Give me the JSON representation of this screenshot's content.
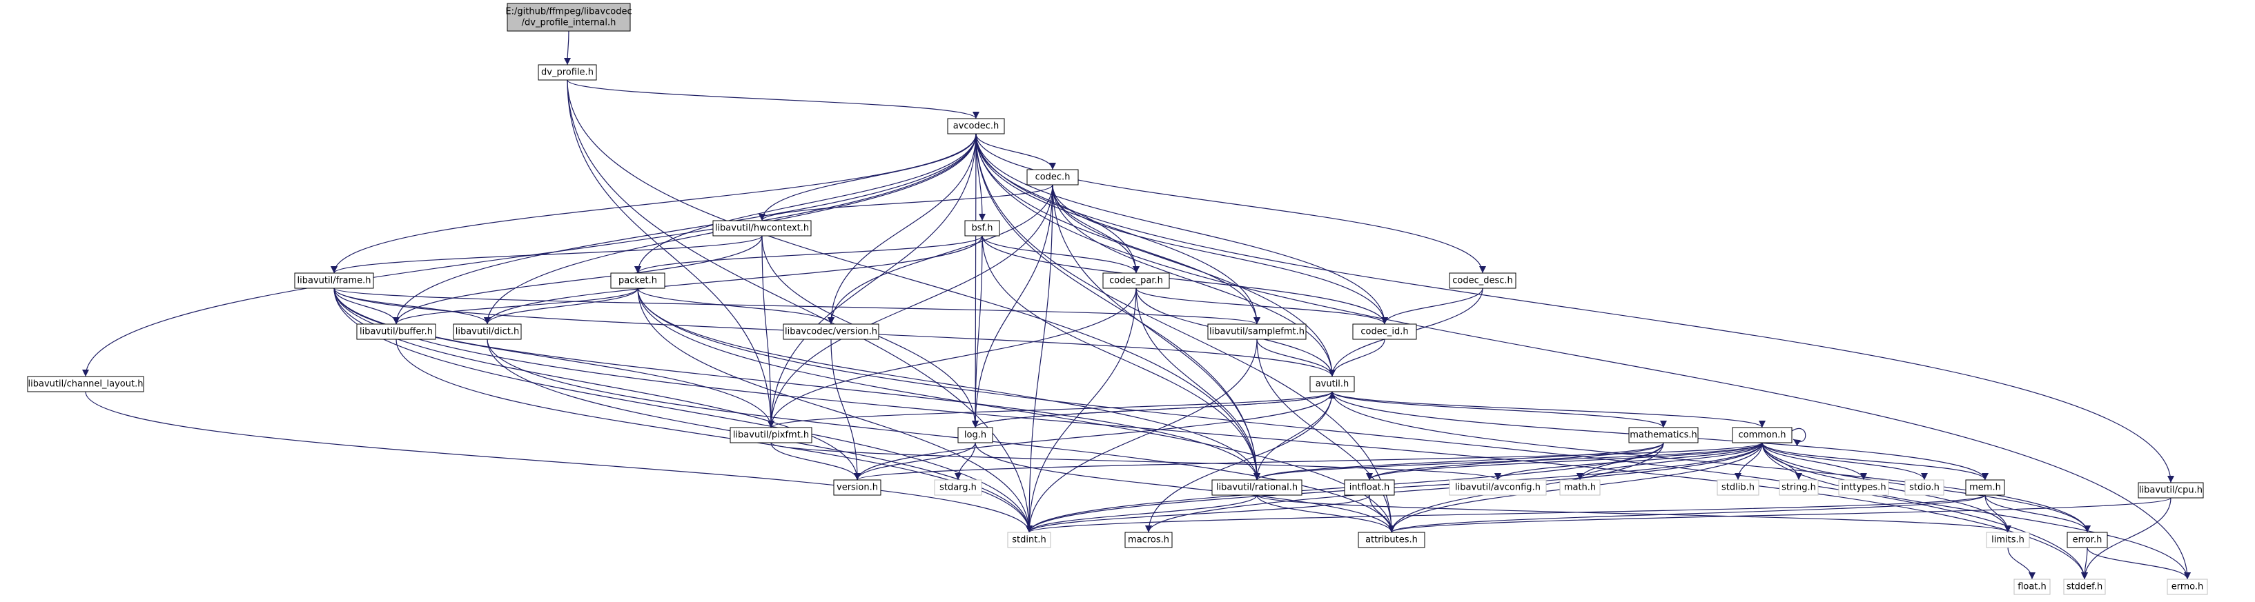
{
  "diagram": {
    "nodes": [
      {
        "id": "root",
        "label": "E:/github/ffmpeg/libavcodec\n/dv_profile_internal.h",
        "style": "root"
      },
      {
        "id": "dv_profile",
        "label": "dv_profile.h",
        "style": "documented"
      },
      {
        "id": "avcodec",
        "label": "avcodec.h",
        "style": "documented"
      },
      {
        "id": "codec",
        "label": "codec.h",
        "style": "documented"
      },
      {
        "id": "hwcontext",
        "label": "libavutil/hwcontext.h",
        "style": "documented"
      },
      {
        "id": "bsf",
        "label": "bsf.h",
        "style": "documented"
      },
      {
        "id": "frame",
        "label": "libavutil/frame.h",
        "style": "documented"
      },
      {
        "id": "packet",
        "label": "packet.h",
        "style": "documented"
      },
      {
        "id": "codec_par",
        "label": "codec_par.h",
        "style": "documented"
      },
      {
        "id": "codec_desc",
        "label": "codec_desc.h",
        "style": "documented"
      },
      {
        "id": "buffer",
        "label": "libavutil/buffer.h",
        "style": "documented"
      },
      {
        "id": "dict",
        "label": "libavutil/dict.h",
        "style": "documented"
      },
      {
        "id": "avc_version",
        "label": "libavcodec/version.h",
        "style": "documented"
      },
      {
        "id": "samplefmt",
        "label": "libavutil/samplefmt.h",
        "style": "documented"
      },
      {
        "id": "codec_id",
        "label": "codec_id.h",
        "style": "documented"
      },
      {
        "id": "channel_layout",
        "label": "libavutil/channel_layout.h",
        "style": "documented"
      },
      {
        "id": "avutil",
        "label": "avutil.h",
        "style": "documented"
      },
      {
        "id": "pixfmt",
        "label": "libavutil/pixfmt.h",
        "style": "documented"
      },
      {
        "id": "log",
        "label": "log.h",
        "style": "documented"
      },
      {
        "id": "mathematics",
        "label": "mathematics.h",
        "style": "documented"
      },
      {
        "id": "common",
        "label": "common.h",
        "style": "documented"
      },
      {
        "id": "cpu",
        "label": "libavutil/cpu.h",
        "style": "documented"
      },
      {
        "id": "version",
        "label": "version.h",
        "style": "documented"
      },
      {
        "id": "stdarg",
        "label": "stdarg.h",
        "style": "external"
      },
      {
        "id": "rational",
        "label": "libavutil/rational.h",
        "style": "documented"
      },
      {
        "id": "intfloat",
        "label": "intfloat.h",
        "style": "documented"
      },
      {
        "id": "avconfig",
        "label": "libavutil/avconfig.h",
        "style": "external"
      },
      {
        "id": "math",
        "label": "math.h",
        "style": "external"
      },
      {
        "id": "stdlib",
        "label": "stdlib.h",
        "style": "external"
      },
      {
        "id": "string",
        "label": "string.h",
        "style": "external"
      },
      {
        "id": "inttypes",
        "label": "inttypes.h",
        "style": "external"
      },
      {
        "id": "stdio",
        "label": "stdio.h",
        "style": "external"
      },
      {
        "id": "mem",
        "label": "mem.h",
        "style": "documented"
      },
      {
        "id": "stdint",
        "label": "stdint.h",
        "style": "external"
      },
      {
        "id": "macros",
        "label": "macros.h",
        "style": "documented"
      },
      {
        "id": "attributes",
        "label": "attributes.h",
        "style": "documented"
      },
      {
        "id": "limits",
        "label": "limits.h",
        "style": "external"
      },
      {
        "id": "error",
        "label": "error.h",
        "style": "documented"
      },
      {
        "id": "float",
        "label": "float.h",
        "style": "external"
      },
      {
        "id": "stddef",
        "label": "stddef.h",
        "style": "external"
      },
      {
        "id": "errno",
        "label": "errno.h",
        "style": "external"
      }
    ],
    "edges": [
      [
        "root",
        "dv_profile"
      ],
      [
        "dv_profile",
        "avcodec"
      ],
      [
        "dv_profile",
        "pixfmt"
      ],
      [
        "dv_profile",
        "rational"
      ],
      [
        "dv_profile",
        "stdint"
      ],
      [
        "avcodec",
        "codec"
      ],
      [
        "avcodec",
        "hwcontext"
      ],
      [
        "avcodec",
        "bsf"
      ],
      [
        "avcodec",
        "frame"
      ],
      [
        "avcodec",
        "packet"
      ],
      [
        "avcodec",
        "codec_par"
      ],
      [
        "avcodec",
        "codec_desc"
      ],
      [
        "avcodec",
        "buffer"
      ],
      [
        "avcodec",
        "dict"
      ],
      [
        "avcodec",
        "avc_version"
      ],
      [
        "avcodec",
        "samplefmt"
      ],
      [
        "avcodec",
        "codec_id"
      ],
      [
        "avcodec",
        "channel_layout"
      ],
      [
        "avcodec",
        "avutil"
      ],
      [
        "avcodec",
        "pixfmt"
      ],
      [
        "avcodec",
        "log"
      ],
      [
        "avcodec",
        "rational"
      ],
      [
        "avcodec",
        "cpu"
      ],
      [
        "avcodec",
        "attributes"
      ],
      [
        "avcodec",
        "errno"
      ],
      [
        "codec",
        "hwcontext"
      ],
      [
        "codec",
        "codec_par"
      ],
      [
        "codec",
        "avc_version"
      ],
      [
        "codec",
        "samplefmt"
      ],
      [
        "codec",
        "codec_id"
      ],
      [
        "codec",
        "avutil"
      ],
      [
        "codec",
        "pixfmt"
      ],
      [
        "codec",
        "log"
      ],
      [
        "codec",
        "rational"
      ],
      [
        "codec",
        "stdint"
      ],
      [
        "hwcontext",
        "frame"
      ],
      [
        "hwcontext",
        "buffer"
      ],
      [
        "hwcontext",
        "pixfmt"
      ],
      [
        "hwcontext",
        "log"
      ],
      [
        "bsf",
        "packet"
      ],
      [
        "bsf",
        "codec_par"
      ],
      [
        "bsf",
        "codec_id"
      ],
      [
        "bsf",
        "dict"
      ],
      [
        "bsf",
        "log"
      ],
      [
        "bsf",
        "rational"
      ],
      [
        "frame",
        "buffer"
      ],
      [
        "frame",
        "dict"
      ],
      [
        "frame",
        "avutil"
      ],
      [
        "frame",
        "pixfmt"
      ],
      [
        "frame",
        "samplefmt"
      ],
      [
        "frame",
        "rational"
      ],
      [
        "frame",
        "version"
      ],
      [
        "frame",
        "stdint"
      ],
      [
        "frame",
        "stddef"
      ],
      [
        "packet",
        "buffer"
      ],
      [
        "packet",
        "dict"
      ],
      [
        "packet",
        "avc_version"
      ],
      [
        "packet",
        "rational"
      ],
      [
        "packet",
        "attributes"
      ],
      [
        "packet",
        "stdint"
      ],
      [
        "packet",
        "stddef"
      ],
      [
        "codec_par",
        "codec_id"
      ],
      [
        "codec_par",
        "avutil"
      ],
      [
        "codec_par",
        "pixfmt"
      ],
      [
        "codec_par",
        "rational"
      ],
      [
        "codec_par",
        "stdint"
      ],
      [
        "codec_desc",
        "codec_id"
      ],
      [
        "codec_desc",
        "avutil"
      ],
      [
        "buffer",
        "stdint"
      ],
      [
        "dict",
        "stdint"
      ],
      [
        "dict",
        "attributes"
      ],
      [
        "avc_version",
        "version"
      ],
      [
        "samplefmt",
        "avutil"
      ],
      [
        "samplefmt",
        "attributes"
      ],
      [
        "samplefmt",
        "stdint"
      ],
      [
        "codec_id",
        "avutil"
      ],
      [
        "channel_layout",
        "stdint"
      ],
      [
        "avutil",
        "log"
      ],
      [
        "avutil",
        "pixfmt"
      ],
      [
        "avutil",
        "mathematics"
      ],
      [
        "avutil",
        "common"
      ],
      [
        "avutil",
        "rational"
      ],
      [
        "avutil",
        "version"
      ],
      [
        "avutil",
        "macros"
      ],
      [
        "avutil",
        "mem"
      ],
      [
        "avutil",
        "error"
      ],
      [
        "pixfmt",
        "version"
      ],
      [
        "pixfmt",
        "avconfig"
      ],
      [
        "log",
        "avutil"
      ],
      [
        "log",
        "version"
      ],
      [
        "log",
        "attributes"
      ],
      [
        "log",
        "stdarg"
      ],
      [
        "mathematics",
        "rational"
      ],
      [
        "mathematics",
        "intfloat"
      ],
      [
        "mathematics",
        "math"
      ],
      [
        "mathematics",
        "attributes"
      ],
      [
        "mathematics",
        "stdint"
      ],
      [
        "common",
        "common"
      ],
      [
        "common",
        "rational"
      ],
      [
        "common",
        "intfloat"
      ],
      [
        "common",
        "avconfig"
      ],
      [
        "common",
        "math"
      ],
      [
        "common",
        "stdlib"
      ],
      [
        "common",
        "string"
      ],
      [
        "common",
        "inttypes"
      ],
      [
        "common",
        "stdio"
      ],
      [
        "common",
        "mem"
      ],
      [
        "common",
        "stdint"
      ],
      [
        "common",
        "macros"
      ],
      [
        "common",
        "attributes"
      ],
      [
        "common",
        "limits"
      ],
      [
        "common",
        "error"
      ],
      [
        "common",
        "version"
      ],
      [
        "common",
        "errno"
      ],
      [
        "cpu",
        "attributes"
      ],
      [
        "cpu",
        "stddef"
      ],
      [
        "rational",
        "attributes"
      ],
      [
        "rational",
        "limits"
      ],
      [
        "rational",
        "stdint"
      ],
      [
        "intfloat",
        "attributes"
      ],
      [
        "intfloat",
        "stdint"
      ],
      [
        "mem",
        "attributes"
      ],
      [
        "mem",
        "limits"
      ],
      [
        "mem",
        "error"
      ],
      [
        "mem",
        "stdint"
      ],
      [
        "limits",
        "float"
      ],
      [
        "error",
        "stddef"
      ],
      [
        "error",
        "errno"
      ]
    ]
  },
  "colors": {
    "edge": "#1e1e64",
    "root_fill": "#bfbfbf",
    "node_fill": "#ffffff",
    "node_border": "#000000",
    "external_border": "#bfbfbf"
  }
}
